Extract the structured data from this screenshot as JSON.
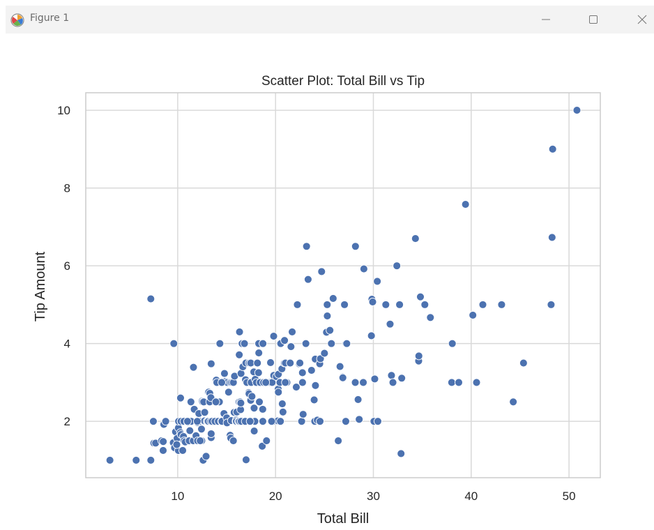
{
  "window": {
    "title": "Figure 1"
  },
  "icons": {
    "app": "matplotlib-figure-icon",
    "minimize": "minimize-icon",
    "maximize": "maximize-icon",
    "close": "close-icon"
  },
  "colors": {
    "point": "#4c72b0",
    "grid": "#d9d9d9",
    "frame": "#cccccc",
    "text": "#262626"
  },
  "chart_data": {
    "type": "scatter",
    "title": "Scatter Plot: Total Bill vs Tip",
    "xlabel": "Total Bill",
    "ylabel": "Tip Amount",
    "xlim": [
      0.6,
      53.2
    ],
    "ylim": [
      0.55,
      10.45
    ],
    "xticks": [
      10,
      20,
      30,
      40,
      50
    ],
    "yticks": [
      2,
      4,
      6,
      8,
      10
    ],
    "grid": true,
    "points": [
      [
        3.07,
        1.0
      ],
      [
        5.75,
        1.0
      ],
      [
        7.25,
        1.0
      ],
      [
        7.25,
        5.15
      ],
      [
        7.51,
        2.0
      ],
      [
        7.56,
        1.44
      ],
      [
        7.74,
        1.44
      ],
      [
        8.35,
        1.5
      ],
      [
        8.51,
        1.25
      ],
      [
        8.52,
        1.48
      ],
      [
        8.58,
        1.92
      ],
      [
        8.77,
        2.0
      ],
      [
        9.55,
        1.45
      ],
      [
        9.6,
        4.0
      ],
      [
        9.68,
        1.32
      ],
      [
        9.78,
        1.73
      ],
      [
        9.94,
        1.56
      ],
      [
        10.07,
        1.83
      ],
      [
        10.07,
        1.25
      ],
      [
        10.09,
        2.0
      ],
      [
        10.27,
        1.71
      ],
      [
        10.29,
        2.6
      ],
      [
        10.33,
        2.0
      ],
      [
        10.34,
        1.66
      ],
      [
        10.34,
        2.0
      ],
      [
        10.51,
        1.25
      ],
      [
        10.59,
        1.61
      ],
      [
        10.63,
        2.0
      ],
      [
        10.65,
        1.5
      ],
      [
        10.77,
        1.47
      ],
      [
        11.02,
        1.98
      ],
      [
        11.17,
        1.5
      ],
      [
        11.24,
        1.76
      ],
      [
        11.35,
        2.5
      ],
      [
        11.38,
        2.0
      ],
      [
        11.59,
        1.5
      ],
      [
        11.61,
        3.39
      ],
      [
        11.69,
        2.31
      ],
      [
        11.87,
        1.63
      ],
      [
        12.02,
        1.97
      ],
      [
        12.03,
        1.5
      ],
      [
        12.16,
        2.2
      ],
      [
        12.26,
        2.0
      ],
      [
        12.43,
        1.8
      ],
      [
        12.46,
        1.5
      ],
      [
        12.48,
        2.52
      ],
      [
        12.54,
        2.5
      ],
      [
        12.6,
        1.0
      ],
      [
        12.66,
        2.5
      ],
      [
        12.69,
        2.0
      ],
      [
        12.74,
        2.01
      ],
      [
        12.76,
        2.23
      ],
      [
        12.9,
        1.1
      ],
      [
        13.0,
        2.0
      ],
      [
        13.03,
        2.0
      ],
      [
        13.13,
        2.0
      ],
      [
        13.16,
        2.75
      ],
      [
        13.27,
        2.5
      ],
      [
        13.28,
        2.72
      ],
      [
        13.37,
        2.0
      ],
      [
        13.39,
        2.61
      ],
      [
        13.42,
        1.58
      ],
      [
        13.42,
        3.48
      ],
      [
        13.42,
        1.68
      ],
      [
        13.51,
        2.0
      ],
      [
        13.81,
        2.0
      ],
      [
        13.94,
        3.06
      ],
      [
        14.0,
        3.0
      ],
      [
        14.07,
        2.5
      ],
      [
        14.15,
        2.0
      ],
      [
        14.26,
        2.5
      ],
      [
        14.31,
        4.0
      ],
      [
        14.48,
        2.0
      ],
      [
        14.52,
        2.0
      ],
      [
        14.73,
        2.2
      ],
      [
        14.78,
        3.23
      ],
      [
        14.83,
        3.02
      ],
      [
        15.01,
        2.09
      ],
      [
        15.04,
        1.96
      ],
      [
        15.06,
        3.0
      ],
      [
        15.36,
        1.64
      ],
      [
        15.38,
        3.0
      ],
      [
        15.42,
        1.57
      ],
      [
        15.48,
        2.02
      ],
      [
        15.53,
        3.0
      ],
      [
        15.69,
        3.0
      ],
      [
        15.69,
        1.5
      ],
      [
        15.77,
        2.23
      ],
      [
        15.81,
        3.16
      ],
      [
        15.95,
        2.0
      ],
      [
        15.98,
        2.03
      ],
      [
        16.0,
        2.0
      ],
      [
        16.04,
        2.24
      ],
      [
        16.21,
        2.0
      ],
      [
        16.27,
        2.5
      ],
      [
        16.29,
        3.71
      ],
      [
        16.31,
        2.0
      ],
      [
        16.32,
        4.3
      ],
      [
        16.4,
        2.5
      ],
      [
        16.43,
        2.3
      ],
      [
        16.45,
        2.47
      ],
      [
        16.47,
        3.23
      ],
      [
        16.49,
        2.0
      ],
      [
        16.58,
        4.0
      ],
      [
        16.66,
        3.4
      ],
      [
        16.82,
        4.0
      ],
      [
        16.93,
        3.07
      ],
      [
        16.97,
        3.5
      ],
      [
        16.99,
        1.01
      ],
      [
        17.07,
        3.0
      ],
      [
        17.26,
        2.74
      ],
      [
        17.29,
        2.71
      ],
      [
        17.31,
        3.5
      ],
      [
        17.46,
        2.54
      ],
      [
        17.47,
        3.5
      ],
      [
        17.51,
        3.0
      ],
      [
        17.59,
        2.64
      ],
      [
        17.78,
        3.27
      ],
      [
        17.81,
        2.34
      ],
      [
        17.82,
        1.75
      ],
      [
        17.89,
        2.0
      ],
      [
        17.92,
        3.08
      ],
      [
        18.04,
        3.0
      ],
      [
        18.15,
        3.5
      ],
      [
        18.24,
        3.76
      ],
      [
        18.26,
        3.25
      ],
      [
        18.28,
        4.0
      ],
      [
        18.29,
        3.76
      ],
      [
        18.35,
        2.5
      ],
      [
        18.43,
        3.0
      ],
      [
        18.64,
        1.36
      ],
      [
        18.69,
        2.31
      ],
      [
        18.71,
        4.0
      ],
      [
        18.78,
        3.0
      ],
      [
        19.08,
        1.5
      ],
      [
        19.44,
        3.0
      ],
      [
        19.49,
        3.51
      ],
      [
        19.65,
        3.0
      ],
      [
        19.77,
        2.0
      ],
      [
        19.81,
        4.19
      ],
      [
        19.82,
        3.18
      ],
      [
        20.08,
        3.15
      ],
      [
        20.23,
        2.01
      ],
      [
        20.27,
        2.83
      ],
      [
        20.29,
        2.75
      ],
      [
        20.29,
        3.21
      ],
      [
        20.45,
        3.0
      ],
      [
        20.53,
        4.0
      ],
      [
        20.65,
        3.35
      ],
      [
        20.69,
        2.45
      ],
      [
        20.76,
        2.24
      ],
      [
        20.9,
        3.5
      ],
      [
        20.92,
        4.08
      ],
      [
        21.01,
        3.5
      ],
      [
        21.01,
        3.0
      ],
      [
        21.16,
        3.0
      ],
      [
        21.5,
        3.5
      ],
      [
        21.58,
        3.92
      ],
      [
        21.7,
        4.3
      ],
      [
        22.12,
        2.88
      ],
      [
        22.23,
        5.0
      ],
      [
        22.42,
        3.48
      ],
      [
        22.49,
        3.5
      ],
      [
        22.67,
        2.0
      ],
      [
        22.75,
        3.25
      ],
      [
        22.76,
        3.0
      ],
      [
        22.82,
        2.18
      ],
      [
        23.1,
        4.0
      ],
      [
        23.17,
        6.5
      ],
      [
        23.33,
        5.65
      ],
      [
        23.68,
        3.31
      ],
      [
        23.95,
        2.55
      ],
      [
        24.01,
        2.0
      ],
      [
        24.06,
        3.6
      ],
      [
        24.08,
        2.92
      ],
      [
        24.27,
        2.03
      ],
      [
        24.52,
        3.48
      ],
      [
        24.55,
        2.0
      ],
      [
        24.59,
        3.61
      ],
      [
        24.71,
        5.85
      ],
      [
        25.0,
        3.75
      ],
      [
        25.21,
        4.29
      ],
      [
        25.28,
        5.0
      ],
      [
        25.29,
        4.71
      ],
      [
        25.56,
        4.34
      ],
      [
        25.71,
        4.0
      ],
      [
        25.89,
        5.16
      ],
      [
        26.41,
        1.5
      ],
      [
        26.59,
        3.41
      ],
      [
        26.86,
        3.14
      ],
      [
        26.88,
        3.12
      ],
      [
        27.05,
        5.0
      ],
      [
        27.18,
        2.0
      ],
      [
        27.2,
        4.0
      ],
      [
        27.28,
        4.0
      ],
      [
        28.15,
        3.0
      ],
      [
        28.17,
        6.5
      ],
      [
        28.44,
        2.56
      ],
      [
        28.55,
        2.05
      ],
      [
        28.97,
        3.0
      ],
      [
        29.03,
        5.92
      ],
      [
        29.8,
        4.2
      ],
      [
        29.85,
        5.14
      ],
      [
        29.93,
        5.07
      ],
      [
        30.06,
        2.0
      ],
      [
        30.14,
        3.09
      ],
      [
        30.4,
        5.6
      ],
      [
        30.46,
        2.0
      ],
      [
        31.27,
        5.0
      ],
      [
        31.71,
        4.5
      ],
      [
        32.4,
        6.0
      ],
      [
        32.68,
        5.0
      ],
      [
        32.83,
        1.17
      ],
      [
        32.9,
        3.11
      ],
      [
        34.3,
        6.7
      ],
      [
        34.63,
        3.55
      ],
      [
        34.65,
        3.68
      ],
      [
        34.81,
        5.2
      ],
      [
        35.26,
        5.0
      ],
      [
        35.83,
        4.67
      ],
      [
        38.01,
        3.0
      ],
      [
        38.07,
        4.0
      ],
      [
        38.73,
        3.0
      ],
      [
        39.42,
        7.58
      ],
      [
        40.17,
        4.73
      ],
      [
        40.55,
        3.0
      ],
      [
        41.19,
        5.0
      ],
      [
        43.11,
        5.0
      ],
      [
        44.3,
        2.5
      ],
      [
        45.35,
        3.5
      ],
      [
        48.17,
        5.0
      ],
      [
        48.27,
        6.73
      ],
      [
        48.33,
        9.0
      ],
      [
        50.81,
        10.0
      ],
      [
        31.85,
        3.18
      ],
      [
        32.0,
        3.0
      ],
      [
        19.6,
        2.0
      ],
      [
        19.0,
        3.0
      ],
      [
        16.9,
        2.0
      ],
      [
        13.9,
        2.5
      ],
      [
        12.3,
        1.5
      ],
      [
        11.0,
        2.0
      ],
      [
        15.2,
        2.75
      ],
      [
        17.4,
        2.0
      ],
      [
        20.5,
        2.0
      ],
      [
        21.0,
        3.0
      ],
      [
        9.9,
        1.4
      ],
      [
        12.0,
        2.0
      ],
      [
        14.5,
        3.0
      ],
      [
        18.7,
        2.0
      ]
    ]
  }
}
